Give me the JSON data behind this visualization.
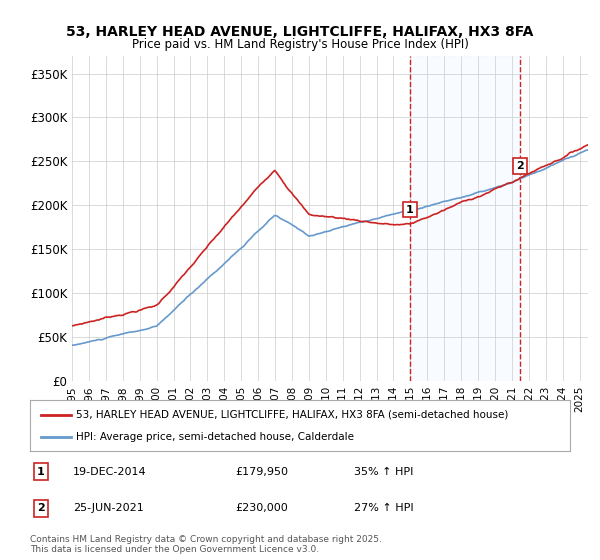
{
  "title": "53, HARLEY HEAD AVENUE, LIGHTCLIFFE, HALIFAX, HX3 8FA",
  "subtitle": "Price paid vs. HM Land Registry's House Price Index (HPI)",
  "ylabel_ticks": [
    "£0",
    "£50K",
    "£100K",
    "£150K",
    "£200K",
    "£250K",
    "£300K",
    "£350K"
  ],
  "ytick_vals": [
    0,
    50000,
    100000,
    150000,
    200000,
    250000,
    300000,
    350000
  ],
  "ylim": [
    0,
    370000
  ],
  "xlim_start": 1995.0,
  "xlim_end": 2025.5,
  "hpi_color": "#6699cc",
  "price_color": "#cc2222",
  "marker1_x": 2014.97,
  "marker1_y": 179950,
  "marker2_x": 2021.48,
  "marker2_y": 230000,
  "marker1_label": "1",
  "marker2_label": "2",
  "annotation1": "19-DEC-2014    £179,950    35% ↑ HPI",
  "annotation2": "25-JUN-2021    £230,000    27% ↑ HPI",
  "legend_line1": "53, HARLEY HEAD AVENUE, LIGHTCLIFFE, HALIFAX, HX3 8FA (semi-detached house)",
  "legend_line2": "HPI: Average price, semi-detached house, Calderdale",
  "footer": "Contains HM Land Registry data © Crown copyright and database right 2025.\nThis data is licensed under the Open Government Licence v3.0.",
  "background_color": "#ffffff",
  "plot_bg_color": "#ffffff",
  "grid_color": "#cccccc",
  "vline_color": "#cc2222",
  "shade_color": "#ddeeff"
}
